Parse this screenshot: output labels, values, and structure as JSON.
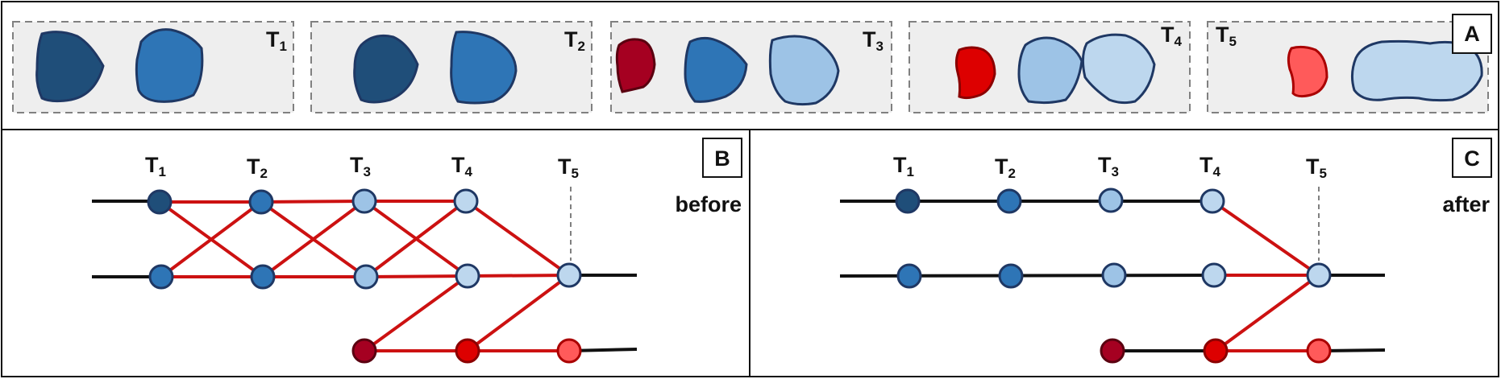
{
  "colors": {
    "frame_border": "#111111",
    "panel_bg": "#eeeeee",
    "panel_dash": "#808080",
    "edge_red": "#cc1111",
    "edge_black": "#111111",
    "outline": "#1f3864",
    "cell_darkblue": "#1f4e79",
    "cell_blue": "#2e75b6",
    "cell_lightblue": "#9dc3e6",
    "cell_lighterblue": "#bdd7ee",
    "cell_darkred": "#a50021",
    "cell_red": "#dd0000",
    "cell_lightred": "#ff5a5a"
  },
  "panel_a": {
    "label": "A",
    "frames": [
      {
        "sym": "T",
        "sub": "1",
        "cells": [
          "darkblue",
          "blue"
        ]
      },
      {
        "sym": "T",
        "sub": "2",
        "cells": [
          "darkblue",
          "blue"
        ]
      },
      {
        "sym": "T",
        "sub": "3",
        "cells": [
          "darkred",
          "blue",
          "lightblue"
        ]
      },
      {
        "sym": "T",
        "sub": "4",
        "cells": [
          "red",
          "lightblue",
          "lighterblue"
        ]
      },
      {
        "sym": "T",
        "sub": "5",
        "cells": [
          "lightred",
          "lighterblue-merged"
        ]
      }
    ]
  },
  "panel_b": {
    "label": "B",
    "caption": "before",
    "time_labels": [
      {
        "sym": "T",
        "sub": "1"
      },
      {
        "sym": "T",
        "sub": "2"
      },
      {
        "sym": "T",
        "sub": "3"
      },
      {
        "sym": "T",
        "sub": "4"
      },
      {
        "sym": "T",
        "sub": "5"
      }
    ]
  },
  "panel_c": {
    "label": "C",
    "caption": "after",
    "time_labels": [
      {
        "sym": "T",
        "sub": "1"
      },
      {
        "sym": "T",
        "sub": "2"
      },
      {
        "sym": "T",
        "sub": "3"
      },
      {
        "sym": "T",
        "sub": "4"
      },
      {
        "sym": "T",
        "sub": "5"
      }
    ]
  }
}
